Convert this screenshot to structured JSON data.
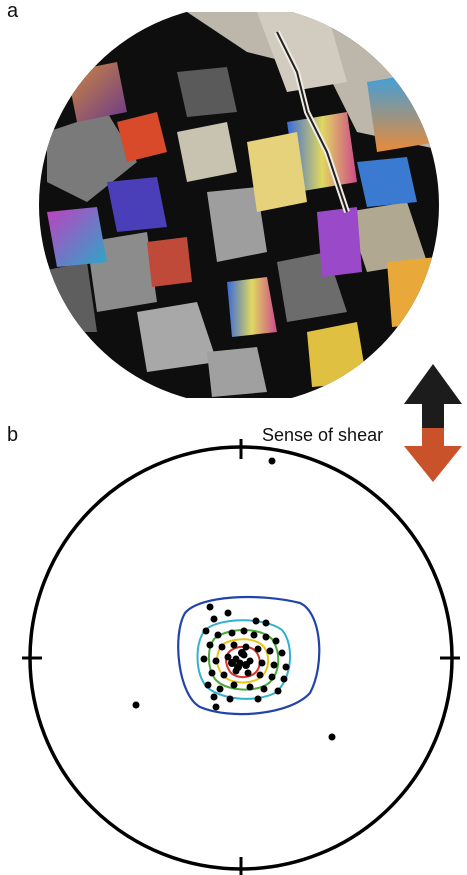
{
  "panels": {
    "a": "a",
    "b": "b"
  },
  "shear": {
    "label": "Sense of shear",
    "arrow_up_color": "#1c1c1c",
    "arrow_down_color": "#c9522a"
  },
  "stereonet": {
    "contour_colors": [
      "#2244aa",
      "#33b0d0",
      "#4aa83a",
      "#e8c31a",
      "#d8322a"
    ]
  }
}
